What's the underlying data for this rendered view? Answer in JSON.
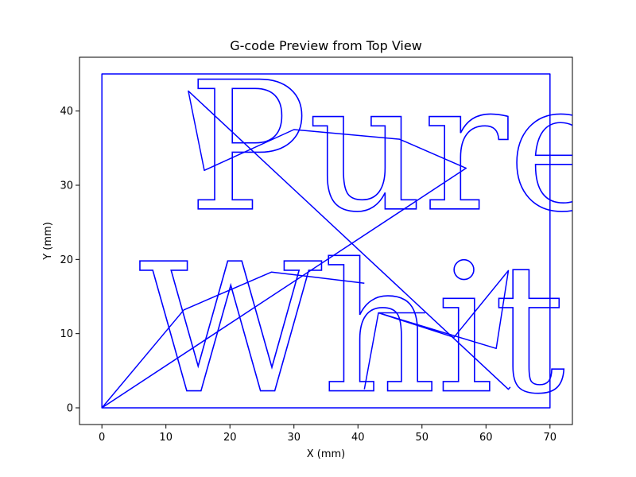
{
  "chart_data": {
    "type": "line",
    "title": "G-code Preview from Top View",
    "xlabel": "X (mm)",
    "ylabel": "Y (mm)",
    "xlim": [
      -3.5,
      73.5
    ],
    "ylim": [
      -2.25,
      47.25
    ],
    "x_ticks": [
      0,
      10,
      20,
      30,
      40,
      50,
      60,
      70
    ],
    "y_ticks": [
      0,
      10,
      20,
      30,
      40
    ],
    "grid": false,
    "color": "#0000ff",
    "text_paths": [
      {
        "text": "Pure",
        "x": 13.5,
        "y": 26.8
      },
      {
        "text": "White!",
        "x": 5.8,
        "y": 2.3
      }
    ],
    "series": [
      {
        "values": [
          [
            0,
            0
          ],
          [
            70,
            0
          ],
          [
            70,
            45
          ],
          [
            0,
            45
          ],
          [
            0,
            0
          ],
          [
            12.8,
            13.2
          ],
          [
            26.5,
            18.3
          ],
          [
            41,
            16.8
          ]
        ]
      },
      {
        "values": [
          [
            0,
            0
          ],
          [
            56.9,
            32.3
          ],
          [
            46.5,
            36.2
          ],
          [
            30,
            37.5
          ],
          [
            16,
            32
          ],
          [
            13.5,
            42.7
          ],
          [
            16,
            32
          ],
          [
            13.5,
            42.7
          ],
          [
            63.5,
            2.5
          ],
          [
            63.8,
            2.8
          ]
        ]
      },
      {
        "values": [
          [
            41,
            2.5
          ],
          [
            43.2,
            12.8
          ],
          [
            61.6,
            8
          ],
          [
            63.5,
            18.5
          ],
          [
            55,
            9.5
          ],
          [
            43.2,
            12.8
          ],
          [
            50.5,
            12.8
          ]
        ]
      }
    ]
  }
}
